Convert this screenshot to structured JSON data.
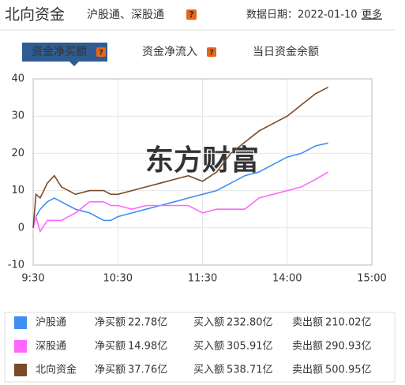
{
  "header": {
    "title": "北向资金",
    "subtitle": "沪股通、深股通",
    "help": "?",
    "date": "数据日期：2022-01-10",
    "more": "更多"
  },
  "tabs": [
    "资金净买额",
    "资金净流入",
    "当日资金余额"
  ],
  "chart_data": {
    "type": "line",
    "watermark": "东方财富",
    "x": [
      0,
      2,
      5,
      10,
      15,
      20,
      25,
      30,
      40,
      50,
      55,
      60,
      70,
      80,
      90,
      100,
      110,
      120,
      130,
      140,
      150,
      160,
      170,
      180,
      190,
      200,
      209
    ],
    "xlim": [
      0,
      240
    ],
    "xticks": [
      {
        "value": 0,
        "label": "9:30"
      },
      {
        "value": 60,
        "label": "10:30"
      },
      {
        "value": 120,
        "label": "11:30"
      },
      {
        "value": 180,
        "label": "14:00"
      },
      {
        "value": 240,
        "label": "15:00"
      }
    ],
    "ylim": [
      -10,
      40
    ],
    "yticks": [
      -10,
      0,
      10,
      20,
      30,
      40
    ],
    "grid": true,
    "series": [
      {
        "name": "沪股通",
        "color": "#3d8ff2",
        "values": [
          0,
          3,
          5,
          7,
          8,
          7,
          6,
          5,
          4,
          2,
          2,
          3,
          4,
          5,
          6,
          7,
          8,
          9,
          10,
          12,
          14,
          15,
          17,
          19,
          20,
          22,
          22.78
        ]
      },
      {
        "name": "深股通",
        "color": "#ff66ff",
        "values": [
          0,
          3,
          -1,
          2,
          2,
          2,
          3,
          4,
          7,
          7,
          6,
          6,
          5,
          6,
          6,
          6,
          6,
          4,
          5,
          5,
          5,
          8,
          9,
          10,
          11,
          13,
          14.98
        ]
      },
      {
        "name": "北向资金",
        "color": "#7b4a28",
        "values": [
          0,
          9,
          8,
          12,
          14,
          11,
          10,
          9,
          10,
          10,
          9,
          9,
          10,
          11,
          12,
          13,
          14,
          12.5,
          15,
          20,
          23,
          26,
          28,
          30,
          33,
          36,
          37.76
        ]
      }
    ]
  },
  "legend_table": {
    "net_label": "净买额",
    "buy_label": "买入额",
    "sell_label": "卖出额",
    "rows": [
      [
        "22.78亿",
        "232.80亿",
        "210.02亿"
      ],
      [
        "14.98亿",
        "305.91亿",
        "290.93亿"
      ],
      [
        "37.76亿",
        "538.71亿",
        "500.95亿"
      ]
    ]
  }
}
